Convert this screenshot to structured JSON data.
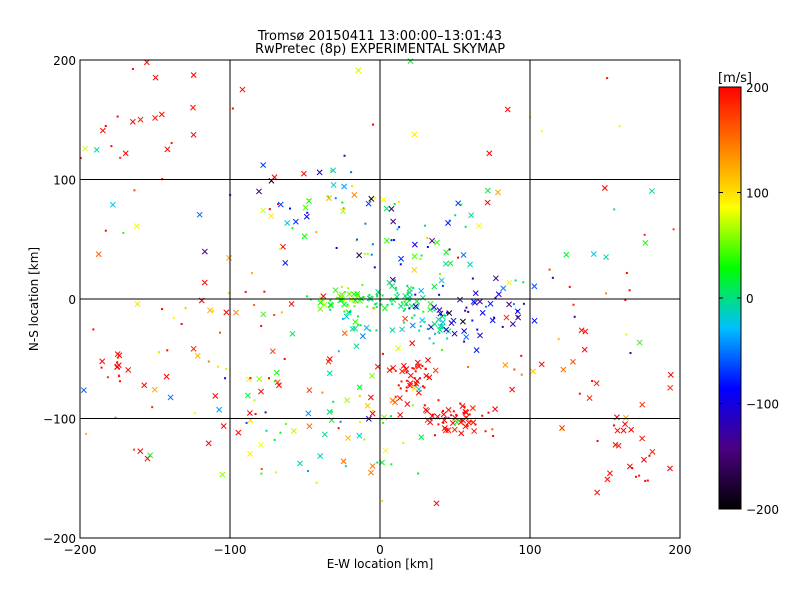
{
  "chart_data": {
    "type": "scatter",
    "title": "Tromsø 20150411 13:00:00–13:01:43",
    "subtitle": "RwPretec (8p) EXPERIMENTAL SKYMAP",
    "xlabel": "E-W location [km]",
    "ylabel": "N-S location [km]",
    "xlim": [
      -200,
      200
    ],
    "ylim": [
      -200,
      200
    ],
    "xticks": [
      -200,
      -100,
      0,
      100,
      200
    ],
    "yticks": [
      -200,
      -100,
      0,
      100,
      200
    ],
    "grid": true,
    "markers": [
      "x",
      "dot"
    ],
    "colorbar": {
      "label": "[m/s]",
      "range": [
        -200,
        200
      ],
      "ticks": [
        200,
        100,
        0,
        -100,
        -200
      ],
      "colormap": [
        "#000000",
        "#4b0082",
        "#0000ff",
        "#00bfff",
        "#00ff00",
        "#ffff00",
        "#ff8000",
        "#ff0000"
      ]
    },
    "clusters": [
      {
        "cx": 20,
        "cy": -70,
        "sx": 8,
        "sy": 10,
        "n": 45,
        "v": 200,
        "vs": 10
      },
      {
        "cx": 50,
        "cy": -100,
        "sx": 12,
        "sy": 7,
        "n": 55,
        "v": 200,
        "vs": 10
      },
      {
        "cx": 15,
        "cy": 0,
        "sx": 12,
        "sy": 6,
        "n": 45,
        "v": 5,
        "vs": 12
      },
      {
        "cx": -25,
        "cy": 0,
        "sx": 10,
        "sy": 5,
        "n": 35,
        "v": 50,
        "vs": 20
      },
      {
        "cx": 38,
        "cy": -25,
        "sx": 5,
        "sy": 6,
        "n": 18,
        "v": -15,
        "vs": 10
      },
      {
        "cx": 60,
        "cy": -10,
        "sx": 20,
        "sy": 12,
        "n": 45,
        "v": -110,
        "vs": 25
      },
      {
        "cx": -10,
        "cy": -20,
        "sx": 20,
        "sy": 12,
        "n": 30,
        "v": -5,
        "vs": 25
      },
      {
        "cx": -175,
        "cy": -55,
        "sx": 6,
        "sy": 6,
        "n": 14,
        "v": 200,
        "vs": 10
      },
      {
        "cx": 165,
        "cy": -130,
        "sx": 14,
        "sy": 14,
        "n": 24,
        "v": 200,
        "vs": 10
      },
      {
        "cx": -160,
        "cy": 150,
        "sx": 30,
        "sy": 30,
        "n": 28,
        "v": 200,
        "vs": 10
      },
      {
        "cx": -40,
        "cy": 75,
        "sx": 22,
        "sy": 22,
        "n": 34,
        "v": 0,
        "vs": 110
      },
      {
        "cx": 20,
        "cy": 40,
        "sx": 25,
        "sy": 22,
        "n": 34,
        "v": 0,
        "vs": 90
      },
      {
        "cx": -30,
        "cy": -110,
        "sx": 40,
        "sy": 25,
        "n": 55,
        "v": 40,
        "vs": 60
      },
      {
        "cx": 70,
        "cy": 30,
        "sx": 35,
        "sy": 25,
        "n": 22,
        "v": -30,
        "vs": 60
      },
      {
        "cx": -100,
        "cy": -50,
        "sx": 45,
        "sy": 45,
        "n": 45,
        "v": 150,
        "vs": 80
      },
      {
        "cx": 130,
        "cy": -40,
        "sx": 35,
        "sy": 50,
        "n": 30,
        "v": 170,
        "vs": 70
      },
      {
        "cx": 0,
        "cy": 0,
        "sx": 110,
        "sy": 110,
        "n": 110,
        "v": 120,
        "vs": 140
      }
    ]
  }
}
